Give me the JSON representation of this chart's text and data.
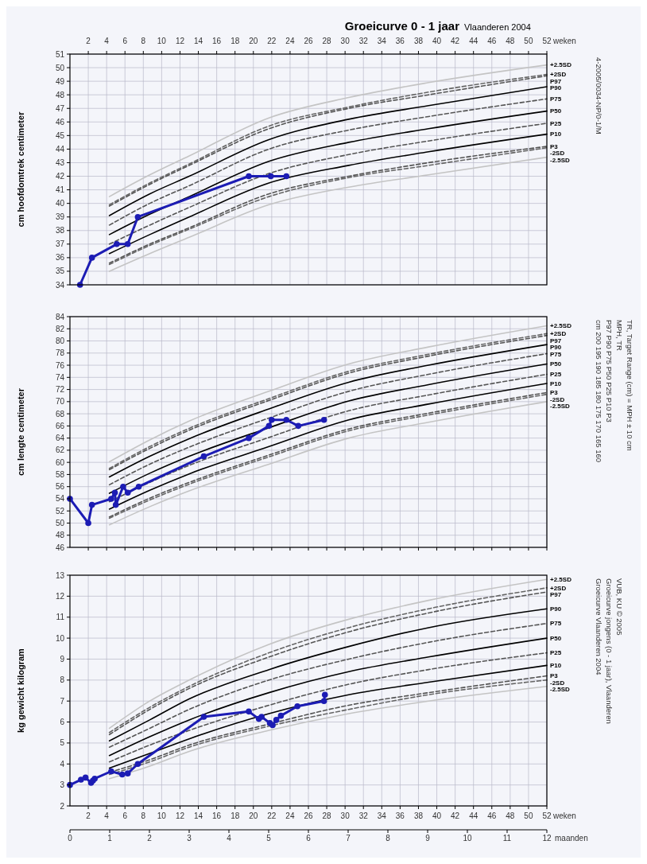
{
  "chart_data": [
    {
      "type": "line",
      "title": "Groeicurve 0 - 1 jaar",
      "subtitle": "Vlaanderen 2004",
      "xlabel": "weken",
      "ylabel": "cm hoofdomtrek centimeter",
      "x": [
        4.3,
        8.7,
        13,
        21.7,
        30.4,
        39.1,
        52
      ],
      "xlim": [
        0,
        52
      ],
      "xticks": [
        2,
        4,
        6,
        8,
        10,
        12,
        14,
        16,
        18,
        20,
        22,
        24,
        26,
        28,
        30,
        32,
        34,
        36,
        38,
        40,
        42,
        44,
        46,
        48,
        50,
        52
      ],
      "ylim": [
        34,
        51
      ],
      "yticks": [
        34,
        35,
        36,
        37,
        38,
        39,
        40,
        41,
        42,
        43,
        44,
        45,
        46,
        47,
        48,
        49,
        50,
        51
      ],
      "grid": true,
      "series": [
        {
          "name": "+2.5SD",
          "color": "#c4c4c4",
          "line_style": "solid",
          "values": [
            40.5,
            42.1,
            43.5,
            46.3,
            47.8,
            48.9,
            50.2
          ]
        },
        {
          "name": "+2SD",
          "color": "#666666",
          "line_style": "dashed",
          "values": [
            39.9,
            41.5,
            42.9,
            45.7,
            47.1,
            48.2,
            49.5
          ]
        },
        {
          "name": "P97",
          "color": "#555555",
          "line_style": "dashed",
          "values": [
            39.8,
            41.4,
            42.8,
            45.5,
            47.0,
            48.0,
            49.4
          ]
        },
        {
          "name": "P90",
          "color": "#000000",
          "line_style": "solid",
          "values": [
            39.1,
            40.7,
            42.0,
            44.7,
            46.2,
            47.2,
            48.6
          ]
        },
        {
          "name": "P75",
          "color": "#555555",
          "line_style": "dashed",
          "values": [
            38.4,
            40.0,
            41.3,
            44.0,
            45.4,
            46.4,
            47.7
          ]
        },
        {
          "name": "P50",
          "color": "#000000",
          "line_style": "solid",
          "values": [
            37.7,
            39.2,
            40.5,
            43.1,
            44.5,
            45.5,
            46.8
          ]
        },
        {
          "name": "P25",
          "color": "#555555",
          "line_style": "dashed",
          "values": [
            37.0,
            38.4,
            39.7,
            42.2,
            43.6,
            44.6,
            45.9
          ]
        },
        {
          "name": "P10",
          "color": "#000000",
          "line_style": "solid",
          "values": [
            36.3,
            37.7,
            39.0,
            41.5,
            42.8,
            43.8,
            45.1
          ]
        },
        {
          "name": "P3",
          "color": "#555555",
          "line_style": "dashed",
          "values": [
            35.6,
            37.0,
            38.2,
            40.7,
            42.0,
            43.0,
            44.2
          ]
        },
        {
          "name": "-2SD",
          "color": "#666666",
          "line_style": "dashed",
          "values": [
            35.5,
            36.9,
            38.1,
            40.5,
            41.9,
            42.8,
            44.1
          ]
        },
        {
          "name": "-2.5SD",
          "color": "#c4c4c4",
          "line_style": "solid",
          "values": [
            35.0,
            36.3,
            37.5,
            39.9,
            41.2,
            42.1,
            43.4
          ]
        },
        {
          "color": "#1c1cb4",
          "line_style": "solid",
          "marker": "circle",
          "x": [
            1.1,
            2.4,
            5.1,
            6.3,
            7.4,
            19.5,
            21.9,
            23.6
          ],
          "values": [
            34,
            36,
            37,
            37,
            39,
            42,
            42,
            42
          ]
        }
      ],
      "annotations": [
        "4-2005/0034-NP/0-1/M"
      ]
    },
    {
      "type": "line",
      "ylabel": "cm lengte centimeter",
      "x": [
        4.3,
        8.7,
        13,
        21.7,
        30.4,
        39.1,
        52
      ],
      "xlim": [
        0,
        52
      ],
      "xticks": [
        2,
        4,
        6,
        8,
        10,
        12,
        14,
        16,
        18,
        20,
        22,
        24,
        26,
        28,
        30,
        32,
        34,
        36,
        38,
        40,
        42,
        44,
        46,
        48,
        50,
        52
      ],
      "ylim": [
        46,
        84
      ],
      "yticks": [
        46,
        48,
        50,
        52,
        54,
        56,
        58,
        60,
        62,
        64,
        66,
        68,
        70,
        72,
        74,
        76,
        78,
        80,
        82,
        84
      ],
      "grid": true,
      "tick_labels": "y",
      "series": [
        {
          "name": "+2.5SD",
          "color": "#c4c4c4",
          "line_style": "solid",
          "values": [
            60.1,
            63.7,
            66.8,
            71.7,
            76.2,
            79.0,
            82.5
          ]
        },
        {
          "name": "+2SD",
          "color": "#666666",
          "line_style": "dashed",
          "values": [
            59.0,
            62.6,
            65.6,
            70.5,
            75.0,
            77.8,
            81.2
          ]
        },
        {
          "name": "P97",
          "color": "#555555",
          "line_style": "dashed",
          "values": [
            58.8,
            62.3,
            65.3,
            70.2,
            74.7,
            77.5,
            80.9
          ]
        },
        {
          "name": "P90",
          "color": "#000000",
          "line_style": "solid",
          "values": [
            57.6,
            61.0,
            63.9,
            68.8,
            73.2,
            76.0,
            79.4
          ]
        },
        {
          "name": "P75",
          "color": "#555555",
          "line_style": "dashed",
          "values": [
            56.3,
            59.7,
            62.5,
            67.3,
            71.7,
            74.5,
            77.9
          ]
        },
        {
          "name": "P50",
          "color": "#000000",
          "line_style": "solid",
          "values": [
            54.9,
            58.2,
            61.0,
            65.7,
            70.1,
            72.8,
            76.2
          ]
        },
        {
          "name": "P25",
          "color": "#555555",
          "line_style": "dashed",
          "values": [
            53.5,
            56.7,
            59.5,
            64.1,
            68.5,
            71.1,
            74.5
          ]
        },
        {
          "name": "P10",
          "color": "#000000",
          "line_style": "solid",
          "values": [
            52.3,
            55.4,
            58.1,
            62.6,
            67.0,
            69.6,
            73.0
          ]
        },
        {
          "name": "P3",
          "color": "#555555",
          "line_style": "dashed",
          "values": [
            51.0,
            54.1,
            56.7,
            61.2,
            65.5,
            68.1,
            71.5
          ]
        },
        {
          "name": "-2SD",
          "color": "#666666",
          "line_style": "dashed",
          "values": [
            50.8,
            53.8,
            56.4,
            60.9,
            65.2,
            67.8,
            71.2
          ]
        },
        {
          "name": "-2.5SD",
          "color": "#c4c4c4",
          "line_style": "solid",
          "values": [
            49.7,
            52.7,
            55.3,
            59.7,
            64.0,
            66.6,
            70.0
          ]
        },
        {
          "color": "#1c1cb4",
          "line_style": "solid",
          "marker": "circle",
          "x": [
            0,
            2,
            2.4,
            4.5,
            4.9,
            5.0,
            5.8,
            6.3,
            7.5,
            14.6,
            19.5,
            21.7,
            22.0,
            23.6,
            24.9,
            27.7
          ],
          "values": [
            54,
            50,
            53,
            54,
            55,
            53,
            56,
            55,
            56,
            61,
            64,
            66,
            67,
            67,
            66,
            67
          ]
        }
      ],
      "annotations": [
        "cm 200 195 190 185 180 175 170 165 160",
        "P97 P90 P75 P50 P25 P10 P3",
        "MPH, TR",
        "TR, Target Range (cm) = MPH ± 10 cm"
      ]
    },
    {
      "type": "line",
      "xlabel": "weken",
      "x2label": "maanden",
      "ylabel": "kg gewicht kilogram",
      "x": [
        4.3,
        8.7,
        13,
        21.7,
        30.4,
        39.1,
        52
      ],
      "xlim": [
        0,
        52
      ],
      "xticks": [
        2,
        4,
        6,
        8,
        10,
        12,
        14,
        16,
        18,
        20,
        22,
        24,
        26,
        28,
        30,
        32,
        34,
        36,
        38,
        40,
        42,
        44,
        46,
        48,
        50,
        52
      ],
      "x2lim": [
        0,
        12
      ],
      "x2ticks": [
        0,
        1,
        2,
        3,
        4,
        5,
        6,
        7,
        8,
        9,
        10,
        11,
        12
      ],
      "ylim": [
        2,
        13
      ],
      "yticks": [
        2,
        3,
        4,
        5,
        6,
        7,
        8,
        9,
        10,
        11,
        12,
        13
      ],
      "grid": true,
      "series": [
        {
          "name": "+2.5SD",
          "color": "#c4c4c4",
          "line_style": "solid",
          "values": [
            5.7,
            7.0,
            8.0,
            9.7,
            10.9,
            11.8,
            12.8
          ]
        },
        {
          "name": "+2SD",
          "color": "#666666",
          "line_style": "dashed",
          "values": [
            5.5,
            6.7,
            7.7,
            9.3,
            10.5,
            11.4,
            12.4
          ]
        },
        {
          "name": "P97",
          "color": "#555555",
          "line_style": "dashed",
          "values": [
            5.4,
            6.6,
            7.6,
            9.1,
            10.3,
            11.2,
            12.2
          ]
        },
        {
          "name": "P90",
          "color": "#000000",
          "line_style": "solid",
          "values": [
            5.1,
            6.1,
            7.1,
            8.5,
            9.6,
            10.5,
            11.4
          ]
        },
        {
          "name": "P75",
          "color": "#555555",
          "line_style": "dashed",
          "values": [
            4.8,
            5.7,
            6.6,
            8.0,
            9.0,
            9.8,
            10.7
          ]
        },
        {
          "name": "P50",
          "color": "#000000",
          "line_style": "solid",
          "values": [
            4.4,
            5.3,
            6.1,
            7.4,
            8.4,
            9.1,
            10.0
          ]
        },
        {
          "name": "P25",
          "color": "#555555",
          "line_style": "dashed",
          "values": [
            4.1,
            4.9,
            5.6,
            6.8,
            7.8,
            8.5,
            9.3
          ]
        },
        {
          "name": "P10",
          "color": "#000000",
          "line_style": "solid",
          "values": [
            3.8,
            4.5,
            5.2,
            6.4,
            7.3,
            7.9,
            8.7
          ]
        },
        {
          "name": "P3",
          "color": "#555555",
          "line_style": "dashed",
          "values": [
            3.6,
            4.2,
            4.9,
            5.9,
            6.8,
            7.4,
            8.2
          ]
        },
        {
          "name": "-2SD",
          "color": "#666666",
          "line_style": "dashed",
          "values": [
            3.5,
            4.1,
            4.8,
            5.8,
            6.6,
            7.3,
            8.0
          ]
        },
        {
          "name": "-2.5SD",
          "color": "#c4c4c4",
          "line_style": "solid",
          "values": [
            3.3,
            3.9,
            4.6,
            5.6,
            6.4,
            7.0,
            7.7
          ]
        },
        {
          "color": "#1c1cb4",
          "line_style": "solid",
          "marker": "circle",
          "x": [
            0,
            1.2,
            1.7,
            2.3,
            2.5,
            2.7,
            4.5,
            5.7,
            6.3,
            7.4,
            14.6,
            19.5,
            20.6,
            20.9,
            21.8,
            22.1,
            22.5,
            23.0,
            24.8,
            27.7,
            27.8
          ],
          "values": [
            3.0,
            3.25,
            3.35,
            3.1,
            3.2,
            3.3,
            3.65,
            3.5,
            3.55,
            4.0,
            6.25,
            6.5,
            6.15,
            6.25,
            5.95,
            5.85,
            6.1,
            6.3,
            6.75,
            7.0,
            7.3
          ]
        }
      ],
      "annotations": [
        "Groeicurve Vlaanderen 2004",
        "Groeicurve jongens (0 - 1 jaar), Vlaanderen",
        "VUB, KU © 2005"
      ]
    }
  ]
}
